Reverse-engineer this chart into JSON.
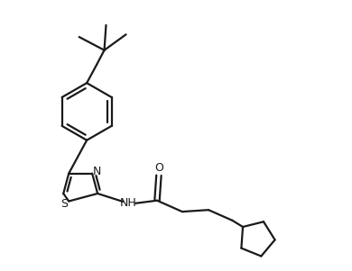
{
  "bg_color": "#ffffff",
  "line_color": "#1a1a1a",
  "line_width": 1.6,
  "fig_width": 3.9,
  "fig_height": 3.01,
  "dpi": 100,
  "xlim": [
    0,
    10
  ],
  "ylim": [
    0,
    7.73
  ],
  "label_fontsize": 9.0
}
